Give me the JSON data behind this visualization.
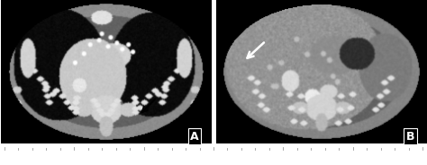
{
  "figure_width": 4.74,
  "figure_height": 1.84,
  "dpi": 100,
  "background_color": "#ffffff",
  "panel_a_label": "A",
  "panel_b_label": "B",
  "label_color": "#ffffff",
  "label_fontsize": 9,
  "label_fontweight": "bold",
  "black_arrow_color": "#000000",
  "white_arrow_color": "#ffffff",
  "bottom_bar_color": "#ffffff",
  "tick_color": "#999999"
}
